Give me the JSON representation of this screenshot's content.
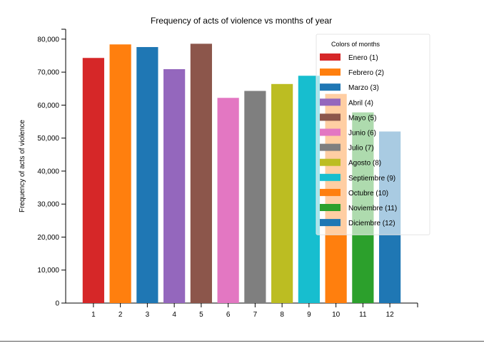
{
  "chart_data": {
    "type": "bar",
    "title": "Frequency of acts of violence vs months of year",
    "xlabel": "",
    "ylabel": "Frequency of acts of violence",
    "categories": [
      "1",
      "2",
      "3",
      "4",
      "5",
      "6",
      "7",
      "8",
      "9",
      "10",
      "11",
      "12"
    ],
    "values": [
      74300,
      78400,
      77600,
      70900,
      78600,
      62200,
      64300,
      66400,
      68900,
      63400,
      57800,
      52000
    ],
    "colors": [
      "#d62728",
      "#ff7f0e",
      "#1f77b4",
      "#9467bd",
      "#8c564b",
      "#e377c2",
      "#7f7f7f",
      "#bcbd22",
      "#17becf",
      "#ff7f0e",
      "#2ca02c",
      "#1f77b4"
    ],
    "bar_opacity": [
      1,
      1,
      1,
      1,
      1,
      1,
      1,
      1,
      1,
      1,
      1,
      1
    ],
    "ylim": [
      0,
      83000
    ],
    "yticks": [
      0,
      10000,
      20000,
      30000,
      40000,
      50000,
      60000,
      70000,
      80000
    ],
    "ytick_labels": [
      "0",
      "10,000",
      "20,000",
      "30,000",
      "40,000",
      "50,000",
      "60,000",
      "70,000",
      "80,000"
    ],
    "grid": false,
    "legend": {
      "title": "Colors of months",
      "placement": "top-right",
      "entries": [
        "Enero (1)",
        "Febrero (2)",
        "Marzo (3)",
        "Abril (4)",
        "Mayo (5)",
        "Junio (6)",
        "Julio (7)",
        "Agosto (8)",
        "Septiembre (9)",
        "Octubre (10)",
        "Noviembre (11)",
        "Diciembre (12)"
      ],
      "colors": [
        "#d62728",
        "#ff7f0e",
        "#1f77b4",
        "#9467bd",
        "#8c564b",
        "#e377c2",
        "#7f7f7f",
        "#bcbd22",
        "#17becf",
        "#ff7f0e",
        "#2ca02c",
        "#1f77b4"
      ]
    }
  }
}
